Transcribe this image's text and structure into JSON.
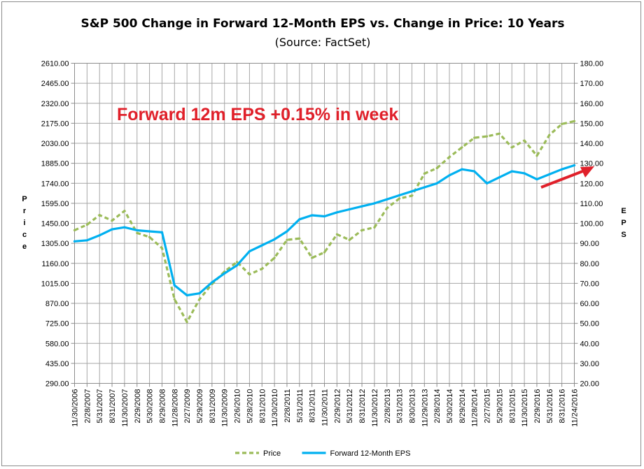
{
  "chart_data": {
    "type": "line",
    "title": "S&P 500 Change in Forward 12-Month EPS vs. Change in Price: 10 Years",
    "subtitle": "(Source: FactSet)",
    "ylabel_left": "Price",
    "ylabel_right": "EPS",
    "ylim_left": [
      290,
      2610
    ],
    "ylim_right": [
      20,
      180
    ],
    "yticks_left": [
      "290.00",
      "435.00",
      "580.00",
      "725.00",
      "870.00",
      "1015.00",
      "1160.00",
      "1305.00",
      "1450.00",
      "1595.00",
      "1740.00",
      "1885.00",
      "2030.00",
      "2175.00",
      "2320.00",
      "2465.00",
      "2610.00"
    ],
    "yticks_right": [
      "20.00",
      "30.00",
      "40.00",
      "50.00",
      "60.00",
      "70.00",
      "80.00",
      "90.00",
      "100.00",
      "110.00",
      "120.00",
      "130.00",
      "140.00",
      "150.00",
      "160.00",
      "170.00",
      "180.00"
    ],
    "categories": [
      "11/30/2006",
      "2/28/2007",
      "5/31/2007",
      "8/31/2007",
      "11/30/2007",
      "2/29/2008",
      "5/30/2008",
      "8/29/2008",
      "11/28/2008",
      "2/27/2009",
      "5/29/2009",
      "8/31/2009",
      "11/30/2009",
      "2/26/2010",
      "5/28/2010",
      "8/31/2010",
      "11/30/2010",
      "2/28/2011",
      "5/31/2011",
      "8/31/2011",
      "11/30/2011",
      "2/29/2012",
      "5/31/2012",
      "8/31/2012",
      "11/30/2012",
      "2/28/2013",
      "5/31/2013",
      "8/30/2013",
      "11/29/2013",
      "2/28/2014",
      "5/30/2014",
      "8/29/2014",
      "11/28/2014",
      "2/27/2015",
      "5/29/2015",
      "8/31/2015",
      "11/30/2015",
      "2/29/2016",
      "5/31/2016",
      "8/31/2016",
      "11/24/2016"
    ],
    "grid": true,
    "legend_position": "bottom",
    "series": [
      {
        "name": "Price",
        "axis": "left",
        "color": "#9BBB59",
        "style": "dashed",
        "values": [
          1400,
          1440,
          1510,
          1470,
          1540,
          1380,
          1350,
          1270,
          900,
          735,
          900,
          1010,
          1100,
          1170,
          1080,
          1120,
          1200,
          1330,
          1340,
          1200,
          1240,
          1370,
          1330,
          1400,
          1420,
          1560,
          1630,
          1650,
          1810,
          1850,
          1930,
          2000,
          2070,
          2080,
          2100,
          2000,
          2050,
          1940,
          2090,
          2170,
          2190
        ]
      },
      {
        "name": "Forward 12-Month EPS",
        "axis": "right",
        "color": "#00B0F0",
        "style": "solid",
        "values": [
          91,
          91.5,
          94,
          97,
          98,
          96.5,
          96,
          95.5,
          69,
          64,
          65,
          70.5,
          75,
          79,
          86,
          89,
          92,
          96,
          102,
          104,
          103.5,
          105.5,
          107,
          108.5,
          110,
          112,
          114,
          116,
          118,
          120,
          124,
          127,
          126,
          120,
          123,
          126,
          125,
          122,
          124.5,
          127,
          129
        ]
      }
    ],
    "annotation": "Forward 12m EPS +0.15% in week"
  }
}
